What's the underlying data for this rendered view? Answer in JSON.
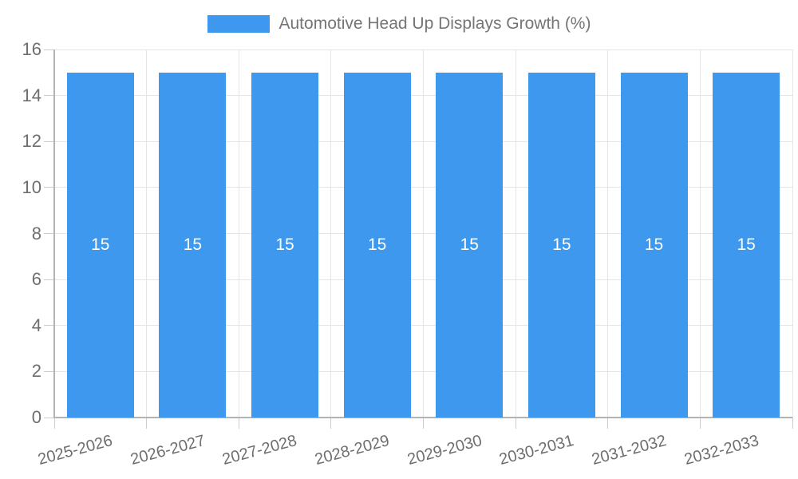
{
  "chart_data": {
    "type": "bar",
    "title": "Automotive Head Up Displays Growth (%)",
    "categories": [
      "2025-2026",
      "2026-2027",
      "2027-2028",
      "2028-2029",
      "2029-2030",
      "2030-2031",
      "2031-2032",
      "2032-2033"
    ],
    "series": [
      {
        "name": "Automotive Head Up Displays Growth (%)",
        "values": [
          15,
          15,
          15,
          15,
          15,
          15,
          15,
          15
        ]
      }
    ],
    "value_labels": [
      15,
      15,
      15,
      15,
      15,
      15,
      15,
      15
    ],
    "xlabel": "",
    "ylabel": "",
    "ylim": [
      0,
      16
    ],
    "ytick_step": 2,
    "ytick_labels": [
      "0",
      "2",
      "4",
      "6",
      "8",
      "10",
      "12",
      "14",
      "16"
    ],
    "grid": true,
    "legend_position": "top",
    "x_tick_rotation_deg": -15,
    "colors": {
      "bar": "#3E99EE",
      "bar_value_label": "#FFFFFF",
      "grid_line": "#E5E5E5",
      "axis_line": "#B3B3B3",
      "tick_mark": "#CCCCCC",
      "tick_label": "#6E6E6E",
      "legend_text": "#757575",
      "background": "#FFFFFF"
    }
  }
}
